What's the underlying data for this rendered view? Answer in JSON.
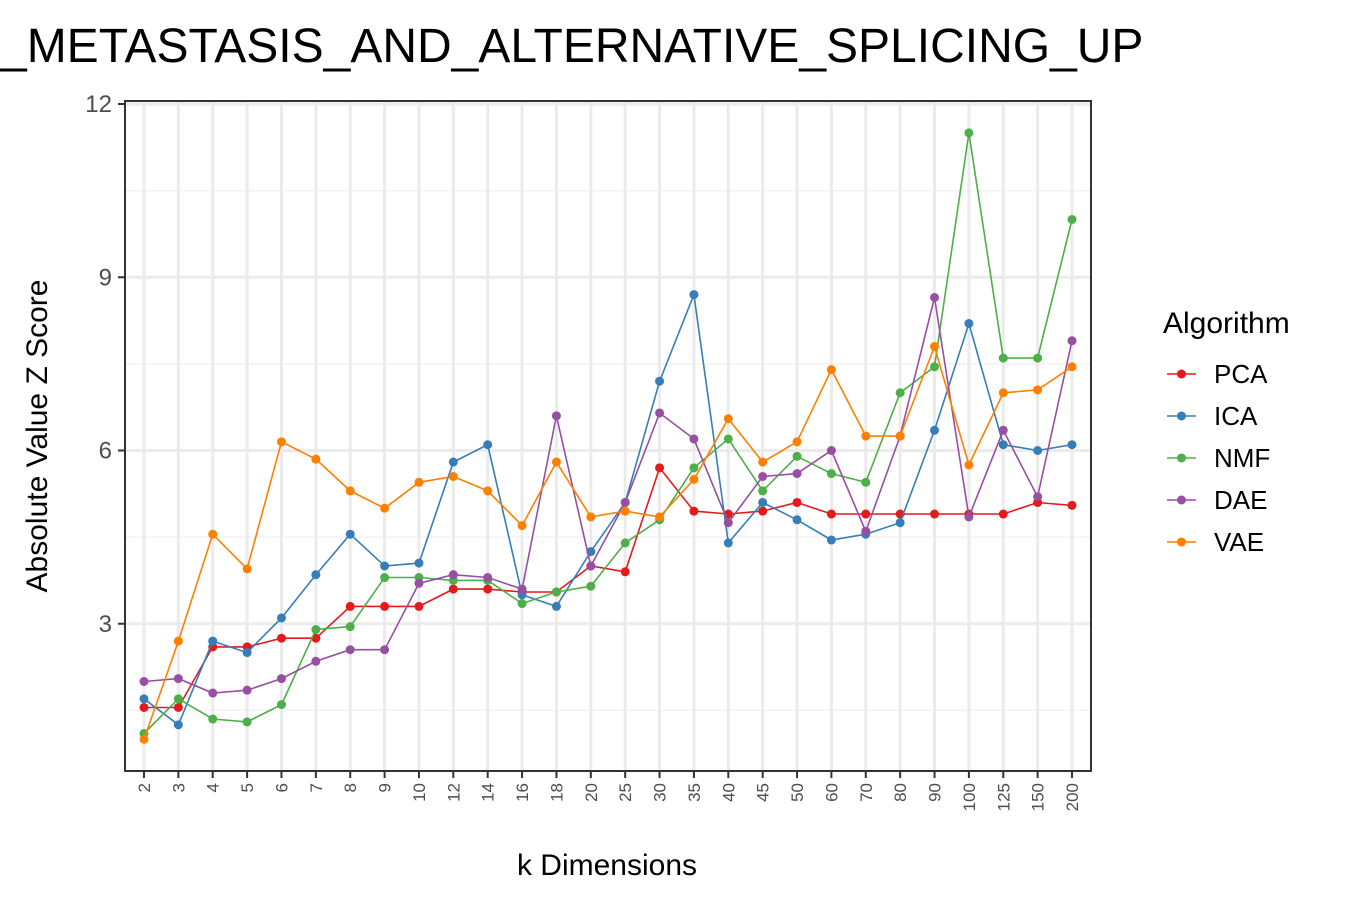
{
  "chart_data": {
    "type": "line",
    "title": "_METASTASIS_AND_ALTERNATIVE_SPLICING_UP",
    "xlabel": "k Dimensions",
    "ylabel": "Absolute Value Z Score",
    "x": [
      "2",
      "3",
      "4",
      "5",
      "6",
      "7",
      "8",
      "9",
      "10",
      "12",
      "14",
      "16",
      "18",
      "20",
      "25",
      "30",
      "35",
      "40",
      "45",
      "50",
      "60",
      "70",
      "80",
      "90",
      "100",
      "125",
      "150",
      "200"
    ],
    "ylim": [
      0,
      12
    ],
    "yticks": [
      "3",
      "6",
      "9",
      "12"
    ],
    "grid": true,
    "legend": {
      "title": "Algorithm",
      "placement": "right"
    },
    "series": [
      {
        "name": "PCA",
        "color": "#e41a1c",
        "values": [
          1.55,
          1.55,
          2.6,
          2.6,
          2.75,
          2.75,
          3.3,
          3.3,
          3.3,
          3.6,
          3.6,
          3.55,
          3.55,
          4.0,
          3.9,
          5.7,
          4.95,
          4.9,
          4.95,
          5.1,
          4.9,
          4.9,
          4.9,
          4.9,
          4.9,
          4.9,
          5.1,
          5.05
        ]
      },
      {
        "name": "ICA",
        "color": "#377eb8",
        "values": [
          1.7,
          1.25,
          2.7,
          2.5,
          3.1,
          3.85,
          4.55,
          4.0,
          4.05,
          5.8,
          6.1,
          3.5,
          3.3,
          4.25,
          5.1,
          7.2,
          8.7,
          4.4,
          5.1,
          4.8,
          4.45,
          4.55,
          4.75,
          6.35,
          8.2,
          6.1,
          6.0,
          6.1
        ]
      },
      {
        "name": "NMF",
        "color": "#4daf4a",
        "values": [
          1.1,
          1.7,
          1.35,
          1.3,
          1.6,
          2.9,
          2.95,
          3.8,
          3.8,
          3.75,
          3.75,
          3.35,
          3.55,
          3.65,
          4.4,
          4.8,
          5.7,
          6.2,
          5.3,
          5.9,
          5.6,
          5.45,
          7.0,
          7.45,
          11.5,
          7.6,
          7.6,
          10.0
        ]
      },
      {
        "name": "DAE",
        "color": "#984ea3",
        "values": [
          2.0,
          2.05,
          1.8,
          1.85,
          2.05,
          2.35,
          2.55,
          2.55,
          3.7,
          3.85,
          3.8,
          3.6,
          6.6,
          4.0,
          5.1,
          6.65,
          6.2,
          4.75,
          5.55,
          5.6,
          6.0,
          4.6,
          6.25,
          8.65,
          4.85,
          6.35,
          5.2,
          7.9
        ]
      },
      {
        "name": "VAE",
        "color": "#ff7f00",
        "values": [
          1.0,
          2.7,
          4.55,
          3.95,
          6.15,
          5.85,
          5.3,
          5.0,
          5.45,
          5.55,
          5.3,
          4.7,
          5.8,
          4.85,
          4.95,
          4.85,
          5.5,
          6.55,
          5.8,
          6.15,
          7.4,
          6.25,
          6.25,
          7.8,
          5.75,
          7.0,
          7.05,
          7.45
        ]
      }
    ]
  }
}
